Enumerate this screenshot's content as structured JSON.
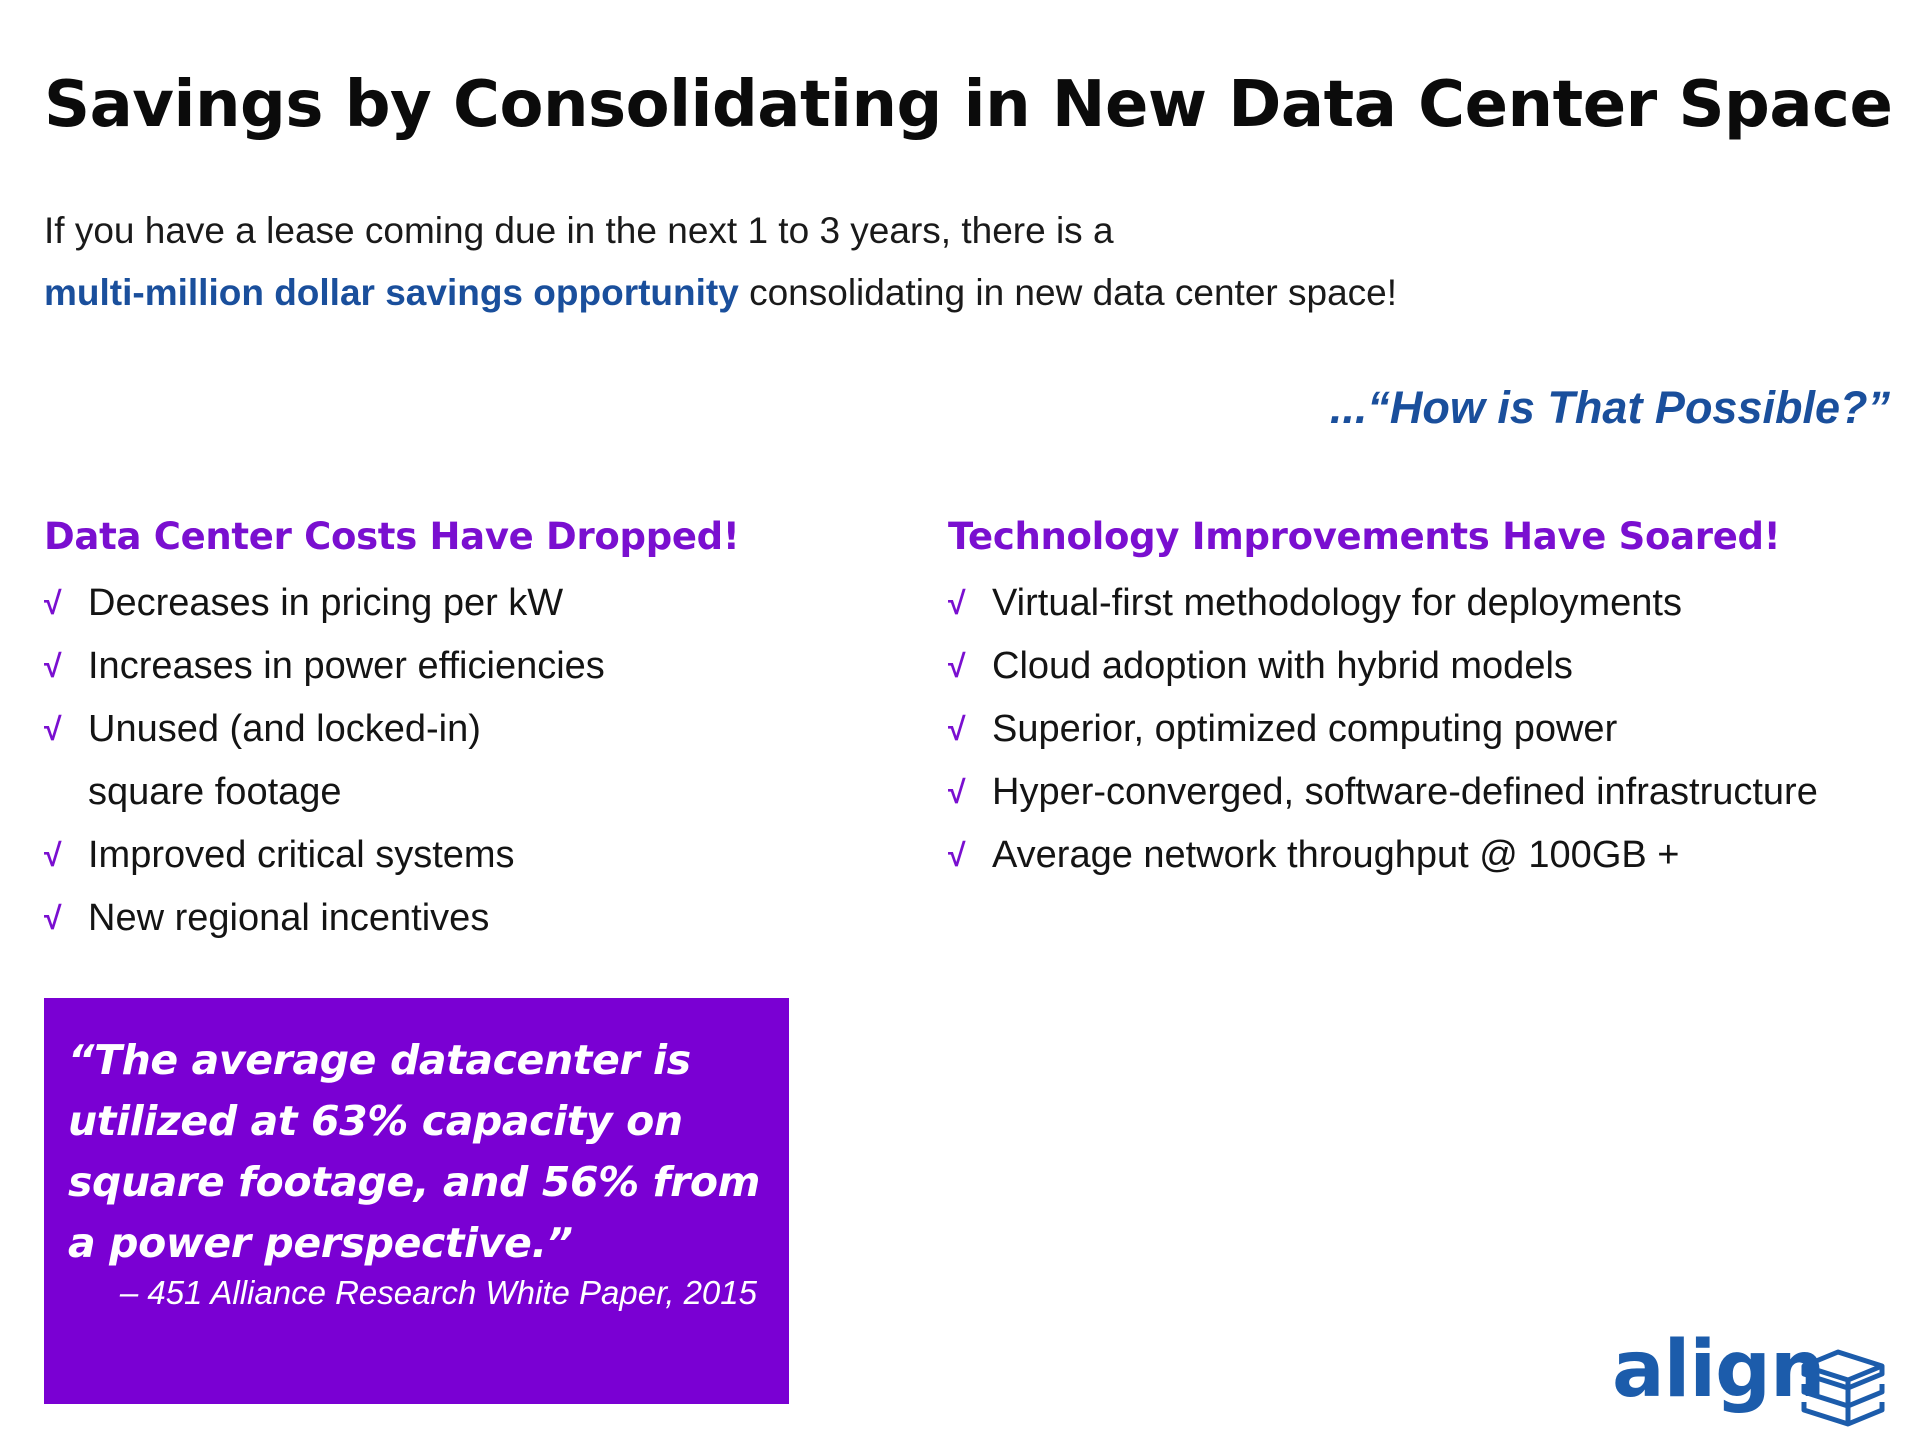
{
  "title": "Savings by Consolidating in New Data Center Space",
  "intro": {
    "line1": "If you have a lease coming due in the next 1 to 3 years, there is a",
    "highlight": "multi-million dollar savings opportunity",
    "line2_rest": " consolidating in new data center space!"
  },
  "question": "...“How is That Possible?”",
  "left_column": {
    "heading": "Data Center Costs Have Dropped!",
    "items": [
      "Decreases in pricing per kW",
      "Increases in power efficiencies",
      "Unused (and locked-in)",
      "square footage",
      "Improved critical systems",
      "New regional incentives"
    ]
  },
  "right_column": {
    "heading": "Technology Improvements Have Soared!",
    "items": [
      "Virtual-first methodology for deployments",
      "Cloud adoption with hybrid models",
      "Superior, optimized computing power",
      "Hyper-converged, software-defined infrastructure",
      "Average network throughput @ 100GB +"
    ]
  },
  "check_symbol": "√",
  "quote": {
    "text": "“The average datacenter is utilized at 63% capacity on square footage, and 56% from a power perspective.”",
    "source": "– 451 Alliance Research White Paper, 2015"
  },
  "logo": {
    "text": "align",
    "icon": "stacked-books-icon"
  },
  "colors": {
    "accent_purple": "#7a0fd0",
    "quote_bg": "#7a00d3",
    "brand_blue": "#1a4f9c"
  }
}
